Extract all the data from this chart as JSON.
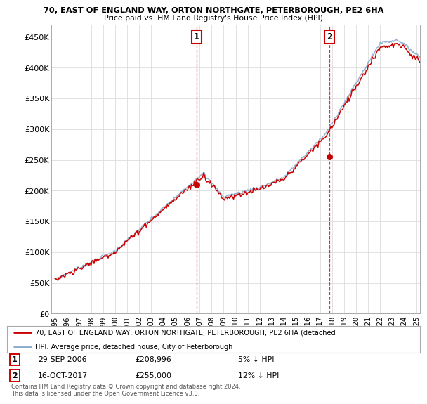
{
  "title_line1": "70, EAST OF ENGLAND WAY, ORTON NORTHGATE, PETERBOROUGH, PE2 6HA",
  "title_line2": "Price paid vs. HM Land Registry's House Price Index (HPI)",
  "ylabel_ticks": [
    "£0",
    "£50K",
    "£100K",
    "£150K",
    "£200K",
    "£250K",
    "£300K",
    "£350K",
    "£400K",
    "£450K"
  ],
  "ytick_values": [
    0,
    50000,
    100000,
    150000,
    200000,
    250000,
    300000,
    350000,
    400000,
    450000
  ],
  "sale1_date": "29-SEP-2006",
  "sale1_price": 208996,
  "sale1_hpi_pct": "5% ↓ HPI",
  "sale1_year": 2006.75,
  "sale2_date": "16-OCT-2017",
  "sale2_price": 255000,
  "sale2_hpi_pct": "12% ↓ HPI",
  "sale2_year": 2017.79,
  "legend_label1": "70, EAST OF ENGLAND WAY, ORTON NORTHGATE, PETERBOROUGH, PE2 6HA (detached",
  "legend_label2": "HPI: Average price, detached house, City of Peterborough",
  "footnote": "Contains HM Land Registry data © Crown copyright and database right 2024.\nThis data is licensed under the Open Government Licence v3.0.",
  "property_line_color": "#cc0000",
  "hpi_line_color": "#88aacc",
  "background_color": "#ffffff",
  "grid_color": "#dddddd",
  "xlim_left": 1994.7,
  "xlim_right": 2025.3,
  "ylim_bottom": 0,
  "ylim_top": 470000
}
